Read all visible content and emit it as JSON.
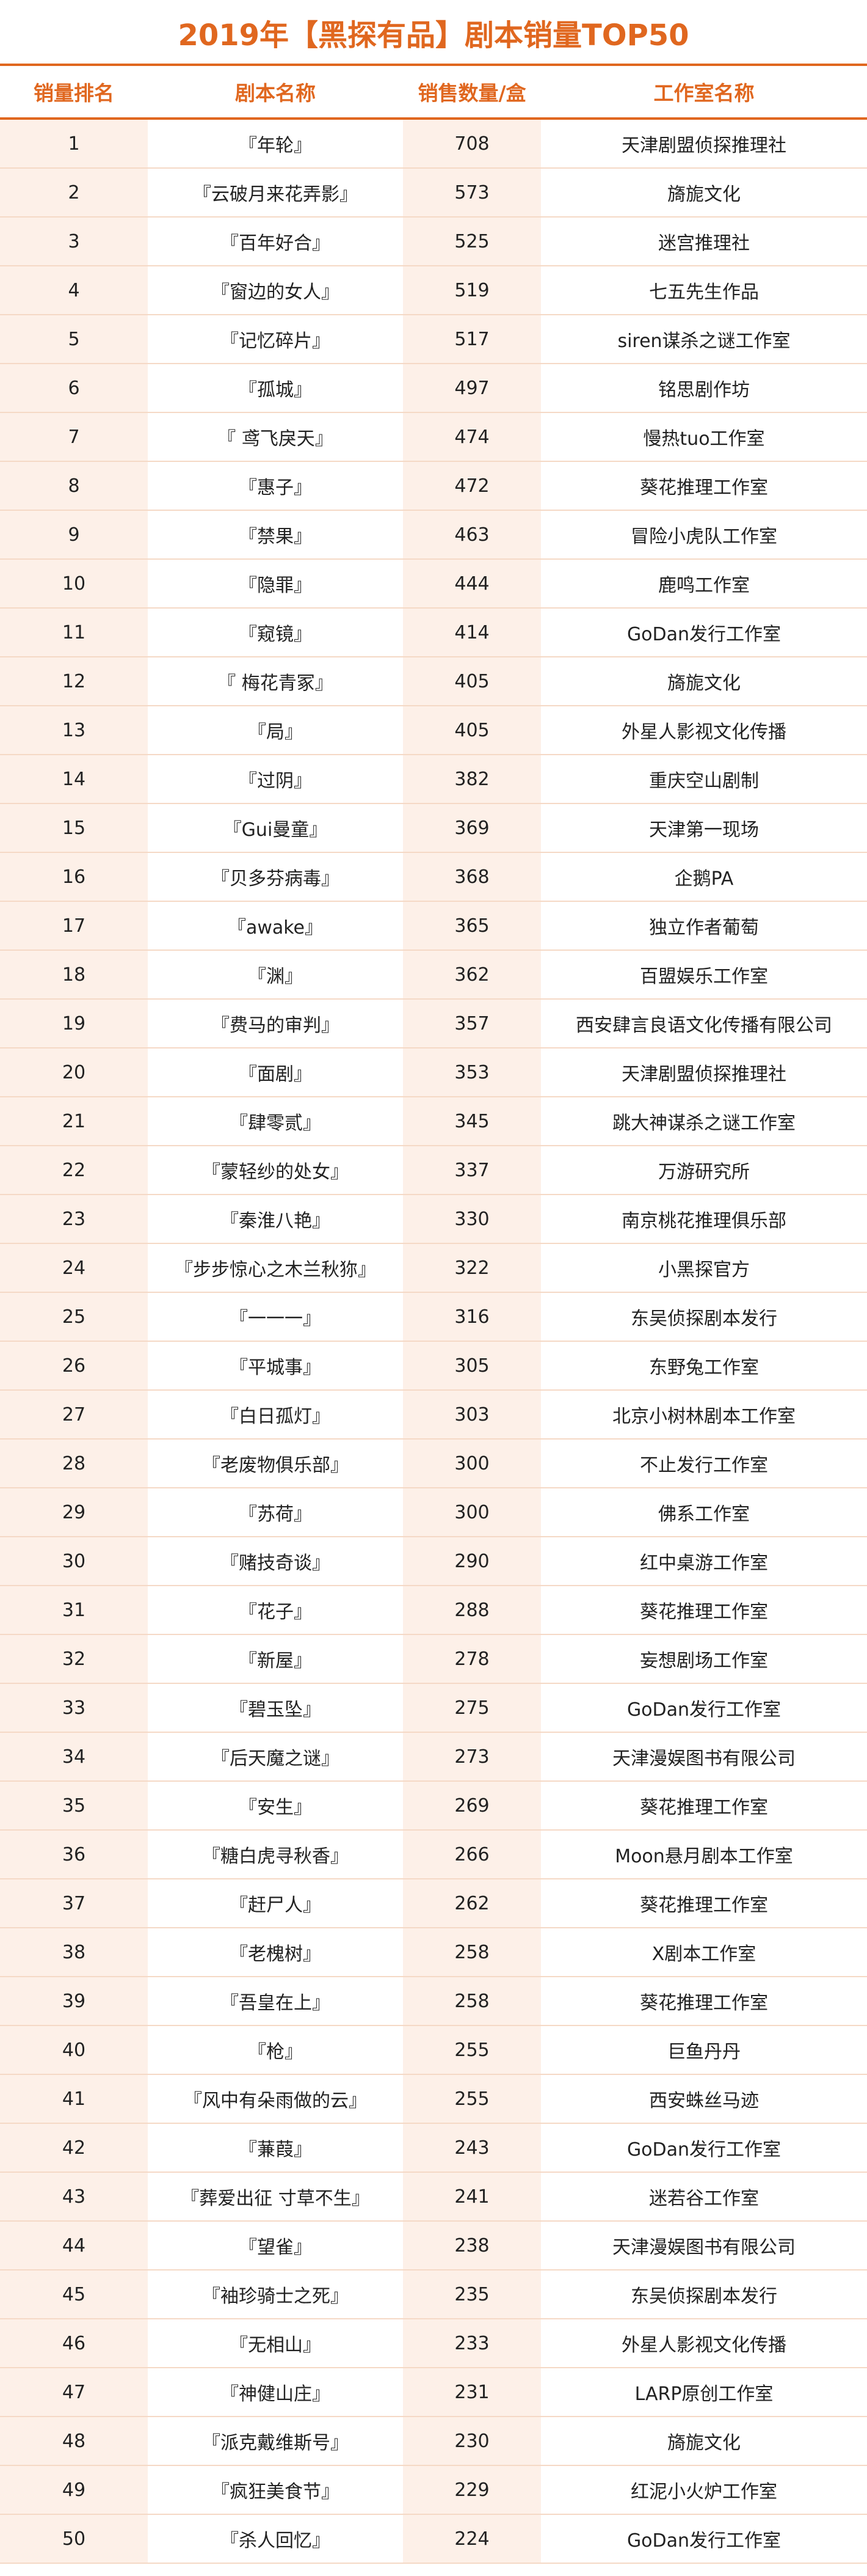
{
  "title": "2019年【黑探有品】剧本销量TOP50",
  "table": {
    "header": [
      "销量排名",
      "剧本名称",
      "销售数量/盒",
      "工作室名称"
    ],
    "rows": [
      [
        1,
        "『年轮』",
        708,
        "天津剧盟侦探推理社"
      ],
      [
        2,
        "『云破月来花弄影』",
        573,
        "旖旎文化"
      ],
      [
        3,
        "『百年好合』",
        525,
        "迷宫推理社"
      ],
      [
        4,
        "『窗边的女人』",
        519,
        "七五先生作品"
      ],
      [
        5,
        "『记忆碎片』",
        517,
        "siren谋杀之谜工作室"
      ],
      [
        6,
        "『孤城』",
        497,
        "铭思剧作坊"
      ],
      [
        7,
        "『 鸢飞戾天』",
        474,
        "慢热tuo工作室"
      ],
      [
        8,
        "『惠子』",
        472,
        "葵花推理工作室"
      ],
      [
        9,
        "『禁果』",
        463,
        "冒险小虎队工作室"
      ],
      [
        10,
        "『隐罪』",
        444,
        "鹿鸣工作室"
      ],
      [
        11,
        "『窥镜』",
        414,
        "GoDan发行工作室"
      ],
      [
        12,
        "『 梅花青冢』",
        405,
        "旖旎文化"
      ],
      [
        13,
        "『局』",
        405,
        "外星人影视文化传播"
      ],
      [
        14,
        "『过阴』",
        382,
        "重庆空山剧制"
      ],
      [
        15,
        "『Gui曼童』",
        369,
        "天津第一现场"
      ],
      [
        16,
        "『贝多芬病毒』",
        368,
        "企鹅PA"
      ],
      [
        17,
        "『awake』",
        365,
        "独立作者葡萄"
      ],
      [
        18,
        "『渊』",
        362,
        "百盟娱乐工作室"
      ],
      [
        19,
        "『费马的审判』",
        357,
        "西安肆言良语文化传播有限公司"
      ],
      [
        20,
        "『面剧』",
        353,
        "天津剧盟侦探推理社"
      ],
      [
        21,
        "『肆零贰』",
        345,
        "跳大神谋杀之谜工作室"
      ],
      [
        22,
        "『蒙轻纱的处女』",
        337,
        "万游研究所"
      ],
      [
        23,
        "『秦淮八艳』",
        330,
        "南京桃花推理俱乐部"
      ],
      [
        24,
        "『步步惊心之木兰秋狝』",
        322,
        "小黑探官方"
      ],
      [
        25,
        "『一一一』",
        316,
        "东吴侦探剧本发行"
      ],
      [
        26,
        "『平城事』",
        305,
        "东野兔工作室"
      ],
      [
        27,
        "『白日孤灯』",
        303,
        "北京小树林剧本工作室"
      ],
      [
        28,
        "『老废物俱乐部』",
        300,
        "不止发行工作室"
      ],
      [
        29,
        "『苏荷』",
        300,
        "佛系工作室"
      ],
      [
        30,
        "『赌技奇谈』",
        290,
        "红中桌游工作室"
      ],
      [
        31,
        "『花子』",
        288,
        "葵花推理工作室"
      ],
      [
        32,
        "『新屋』",
        278,
        "妄想剧场工作室"
      ],
      [
        33,
        "『碧玉坠』",
        275,
        "GoDan发行工作室"
      ],
      [
        34,
        "『后天魔之谜』",
        273,
        "天津漫娱图书有限公司"
      ],
      [
        35,
        "『安生』",
        269,
        "葵花推理工作室"
      ],
      [
        36,
        "『糖白虎寻秋香』",
        266,
        "Moon悬月剧本工作室"
      ],
      [
        37,
        "『赶尸人』",
        262,
        "葵花推理工作室"
      ],
      [
        38,
        "『老槐树』",
        258,
        "X剧本工作室"
      ],
      [
        39,
        "『吾皇在上』",
        258,
        "葵花推理工作室"
      ],
      [
        40,
        "『枪』",
        255,
        "巨鱼丹丹"
      ],
      [
        41,
        "『风中有朵雨做的云』",
        255,
        "西安蛛丝马迹"
      ],
      [
        42,
        "『蒹葭』",
        243,
        "GoDan发行工作室"
      ],
      [
        43,
        "『葬爱出征 寸草不生』",
        241,
        "迷若谷工作室"
      ],
      [
        44,
        "『望雀』",
        238,
        "天津漫娱图书有限公司"
      ],
      [
        45,
        "『袖珍骑士之死』",
        235,
        "东吴侦探剧本发行"
      ],
      [
        46,
        "『无相山』",
        233,
        "外星人影视文化传播"
      ],
      [
        47,
        "『神健山庄』",
        231,
        "LARP原创工作室"
      ],
      [
        48,
        "『派克戴维斯号』",
        230,
        "旖旎文化"
      ],
      [
        49,
        "『疯狂美食节』",
        229,
        "红泥小火炉工作室"
      ],
      [
        50,
        "『杀人回忆』",
        224,
        "GoDan发行工作室"
      ]
    ]
  }
}
